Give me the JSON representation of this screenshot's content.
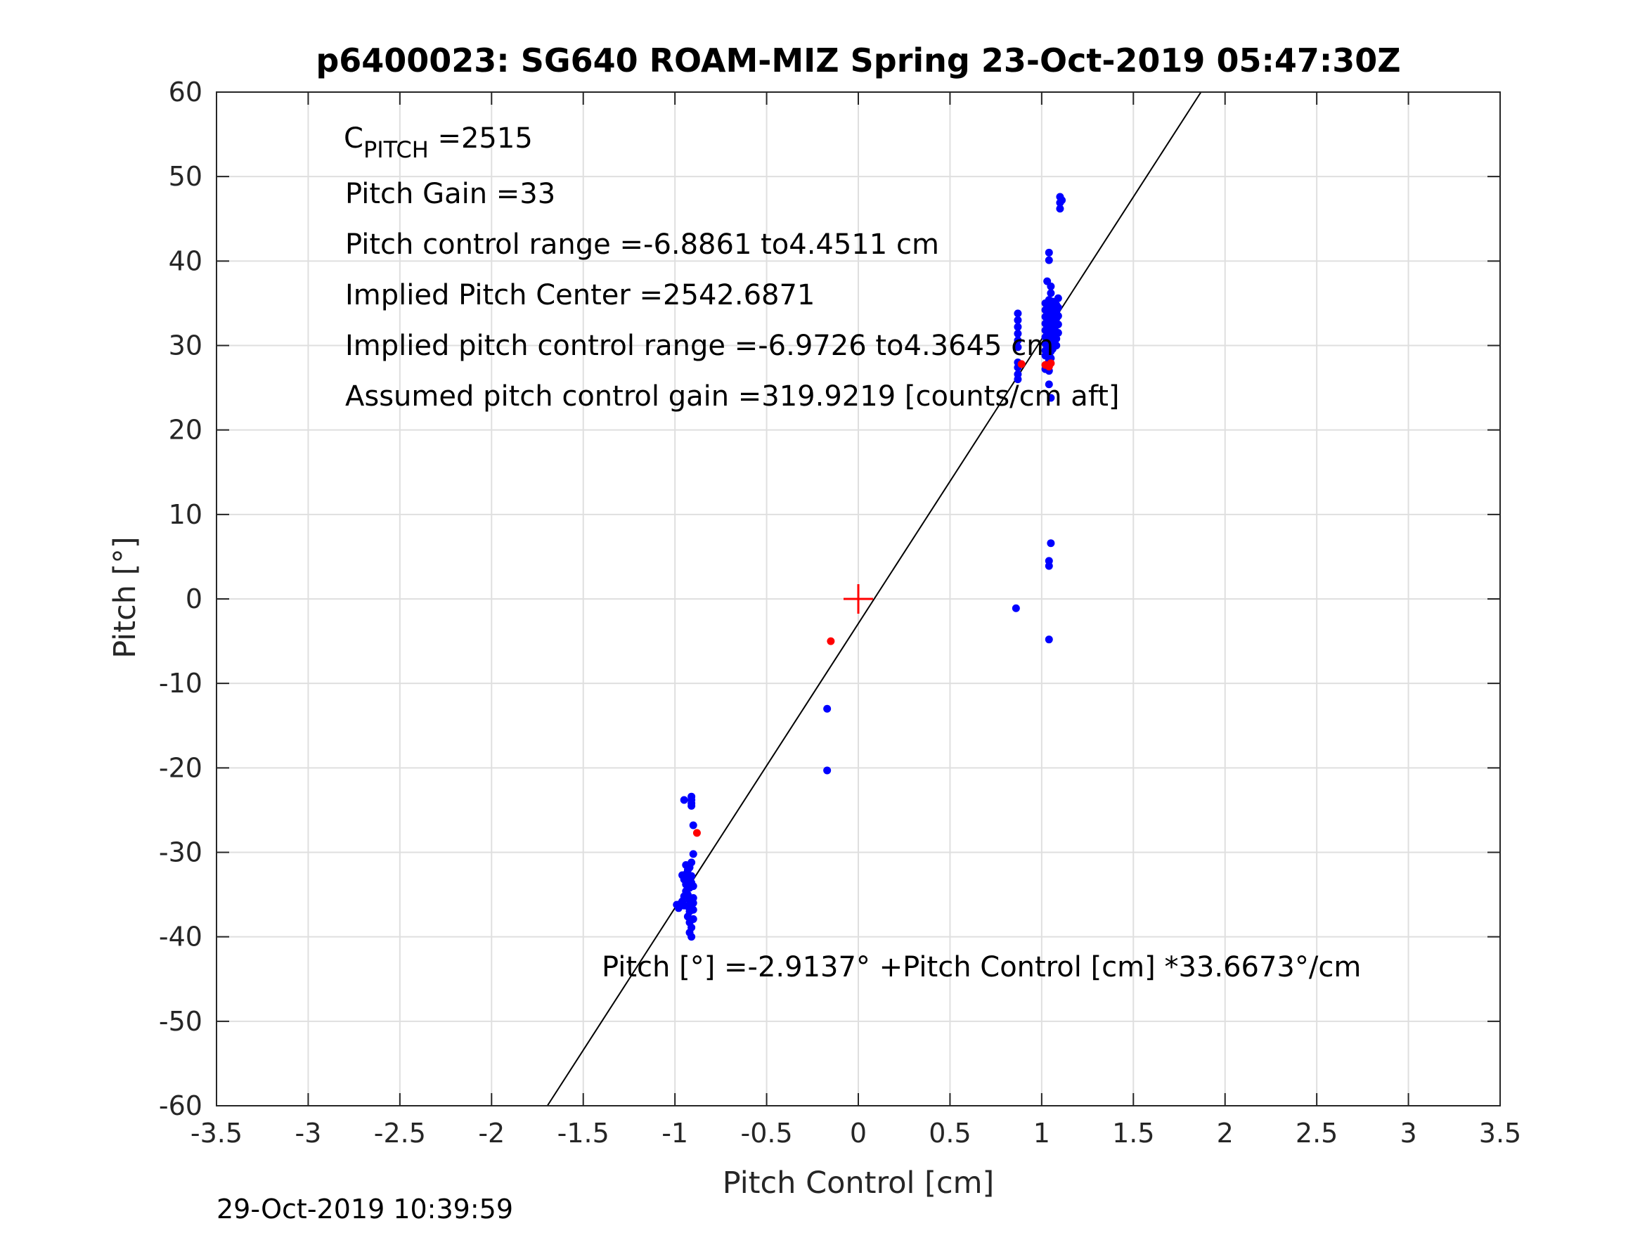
{
  "chart_data": {
    "type": "scatter",
    "title": "p6400023: SG640 ROAM-MIZ Spring 23-Oct-2019 05:47:30Z",
    "xlabel": "Pitch Control [cm]",
    "ylabel": "Pitch [°]",
    "xlim": [
      -3.5,
      3.5
    ],
    "ylim": [
      -60,
      60
    ],
    "xticks": [
      -3.5,
      -3,
      -2.5,
      -2,
      -1.5,
      -1,
      -0.5,
      0,
      0.5,
      1,
      1.5,
      2,
      2.5,
      3,
      3.5
    ],
    "yticks": [
      -60,
      -50,
      -40,
      -30,
      -20,
      -10,
      0,
      10,
      20,
      30,
      40,
      50,
      60
    ],
    "xtick_labels": [
      "-3.5",
      "-3",
      "-2.5",
      "-2",
      "-1.5",
      "-1",
      "-0.5",
      "0",
      "0.5",
      "1",
      "1.5",
      "2",
      "2.5",
      "3",
      "3.5"
    ],
    "ytick_labels": [
      "-60",
      "-50",
      "-40",
      "-30",
      "-20",
      "-10",
      "0",
      "10",
      "20",
      "30",
      "40",
      "50",
      "60"
    ],
    "grid": true,
    "colors": {
      "good": "#0000ff",
      "rejected": "#ff0000",
      "fit_line": "#000000",
      "center_marker": "#ff0000"
    },
    "fit_line": {
      "intercept": -2.9137,
      "slope": 33.6673
    },
    "center_marker": {
      "x": 0,
      "y": 0
    },
    "series": [
      {
        "color": "blue",
        "points": [
          [
            -0.96,
            -35.8
          ],
          [
            -0.95,
            -36.3
          ],
          [
            -0.97,
            -36.1
          ],
          [
            -0.95,
            -35.2
          ],
          [
            -0.94,
            -34.6
          ],
          [
            -0.94,
            -33.8
          ],
          [
            -0.95,
            -33.2
          ],
          [
            -0.94,
            -32.6
          ],
          [
            -0.93,
            -32.1
          ],
          [
            -0.92,
            -31.8
          ],
          [
            -0.93,
            -33.4
          ],
          [
            -0.92,
            -34.2
          ],
          [
            -0.93,
            -35.0
          ],
          [
            -0.92,
            -35.7
          ],
          [
            -0.93,
            -36.4
          ],
          [
            -0.92,
            -37.0
          ],
          [
            -0.93,
            -37.6
          ],
          [
            -0.92,
            -38.3
          ],
          [
            -0.91,
            -38.9
          ],
          [
            -0.92,
            -39.5
          ],
          [
            -0.91,
            -40.0
          ],
          [
            -0.9,
            -36.8
          ],
          [
            -0.9,
            -35.4
          ],
          [
            -0.9,
            -34.0
          ],
          [
            -0.91,
            -32.8
          ],
          [
            -0.91,
            -31.2
          ],
          [
            -0.9,
            -30.2
          ],
          [
            -0.91,
            -33.6
          ],
          [
            -0.9,
            -36.0
          ],
          [
            -0.9,
            -37.9
          ],
          [
            -0.98,
            -36.6
          ],
          [
            -0.99,
            -36.2
          ],
          [
            -0.94,
            -31.5
          ],
          [
            -0.96,
            -32.7
          ],
          [
            -0.95,
            -23.8
          ],
          [
            -0.91,
            -23.4
          ],
          [
            -0.91,
            -23.8
          ],
          [
            -0.91,
            -24.2
          ],
          [
            -0.91,
            -24.5
          ],
          [
            -0.9,
            -26.8
          ],
          [
            -0.17,
            -13.0
          ],
          [
            -0.17,
            -20.3
          ],
          [
            0.87,
            33.8
          ],
          [
            0.87,
            33.0
          ],
          [
            0.87,
            32.2
          ],
          [
            0.87,
            31.4
          ],
          [
            0.87,
            30.6
          ],
          [
            0.87,
            29.8
          ],
          [
            0.87,
            28.0
          ],
          [
            0.87,
            27.4
          ],
          [
            0.87,
            26.6
          ],
          [
            0.87,
            26.0
          ],
          [
            1.02,
            35.0
          ],
          [
            1.02,
            34.2
          ],
          [
            1.02,
            33.4
          ],
          [
            1.02,
            32.6
          ],
          [
            1.02,
            31.8
          ],
          [
            1.02,
            31.0
          ],
          [
            1.02,
            30.2
          ],
          [
            1.02,
            29.4
          ],
          [
            1.02,
            28.8
          ],
          [
            1.02,
            27.2
          ],
          [
            1.04,
            35.4
          ],
          [
            1.04,
            34.6
          ],
          [
            1.04,
            33.8
          ],
          [
            1.04,
            33.0
          ],
          [
            1.04,
            32.2
          ],
          [
            1.04,
            31.4
          ],
          [
            1.04,
            30.6
          ],
          [
            1.04,
            29.8
          ],
          [
            1.04,
            29.0
          ],
          [
            1.04,
            28.2
          ],
          [
            1.04,
            27.0
          ],
          [
            1.04,
            25.4
          ],
          [
            1.05,
            34.9
          ],
          [
            1.05,
            34.1
          ],
          [
            1.05,
            33.3
          ],
          [
            1.05,
            32.5
          ],
          [
            1.05,
            31.7
          ],
          [
            1.05,
            30.9
          ],
          [
            1.05,
            30.1
          ],
          [
            1.05,
            29.3
          ],
          [
            1.05,
            28.5
          ],
          [
            1.05,
            23.8
          ],
          [
            1.06,
            35.2
          ],
          [
            1.06,
            34.4
          ],
          [
            1.06,
            33.6
          ],
          [
            1.06,
            32.8
          ],
          [
            1.06,
            32.0
          ],
          [
            1.06,
            31.2
          ],
          [
            1.06,
            30.4
          ],
          [
            1.06,
            29.6
          ],
          [
            1.08,
            34.8
          ],
          [
            1.08,
            34.0
          ],
          [
            1.08,
            33.2
          ],
          [
            1.08,
            32.4
          ],
          [
            1.08,
            31.6
          ],
          [
            1.08,
            30.8
          ],
          [
            1.08,
            30.0
          ],
          [
            1.09,
            35.6
          ],
          [
            1.09,
            34.5
          ],
          [
            1.09,
            33.5
          ],
          [
            1.09,
            32.5
          ],
          [
            1.09,
            31.5
          ],
          [
            1.1,
            47.6
          ],
          [
            1.1,
            46.9
          ],
          [
            1.1,
            46.2
          ],
          [
            1.11,
            47.2
          ],
          [
            1.04,
            41.0
          ],
          [
            1.04,
            40.1
          ],
          [
            1.03,
            37.6
          ],
          [
            1.05,
            37.0
          ],
          [
            1.05,
            36.2
          ],
          [
            0.86,
            -1.1
          ],
          [
            1.05,
            6.6
          ],
          [
            1.04,
            4.5
          ],
          [
            1.04,
            3.9
          ],
          [
            1.04,
            -4.8
          ]
        ]
      },
      {
        "color": "red",
        "points": [
          [
            -0.88,
            -27.7
          ],
          [
            -0.15,
            -5.0
          ],
          [
            0.89,
            27.8
          ],
          [
            1.02,
            27.7
          ],
          [
            1.04,
            27.5
          ],
          [
            1.05,
            27.9
          ]
        ]
      }
    ],
    "annotations": {
      "c_pitch_label": "C",
      "c_pitch_sub": "PITCH",
      "c_pitch_value": " =2515",
      "pitch_gain": "Pitch Gain =33",
      "pitch_control_range": "Pitch control range =-6.8861 to4.4511 cm",
      "implied_pitch_center": "Implied Pitch Center =2542.6871",
      "implied_pitch_control_range": "Implied pitch control range =-6.9726 to4.3645 cm",
      "assumed_gain": "Assumed pitch control gain =319.9219 [counts/cm aft]",
      "fit_equation": "Pitch [°] =-2.9137° +Pitch Control [cm] *33.6673°/cm"
    },
    "timestamp": "29-Oct-2019 10:39:59"
  }
}
